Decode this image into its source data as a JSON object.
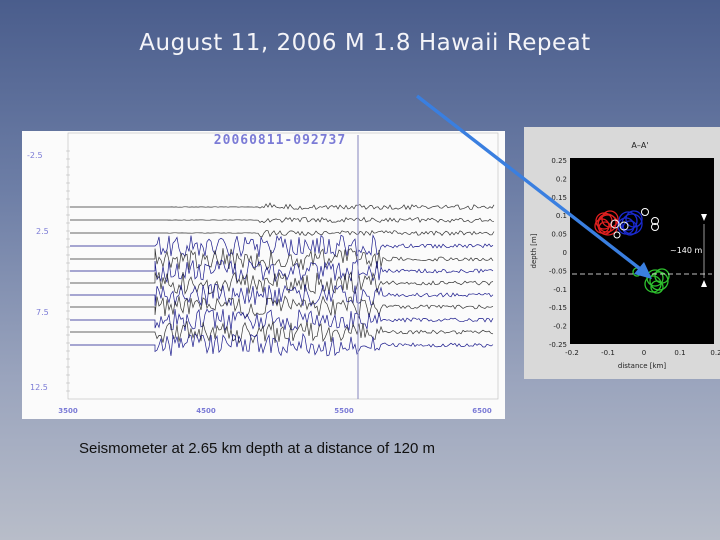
{
  "slide": {
    "title": "August 11, 2006 M 1.8 Hawaii Repeat",
    "caption": "Seismometer at 2.65 km depth at a distance of 120 m",
    "background_top": "#4a5d8c",
    "background_bottom": "#b8bdc9"
  },
  "seismogram": {
    "header": "20060811-092737",
    "header_color": "#7b7bd6",
    "y_tick_labels": [
      "-2.5",
      "2.5",
      "7.5",
      "12.5"
    ],
    "x_tick_labels": [
      "3500",
      "4500",
      "5500",
      "6500"
    ],
    "trace_color_primary": "#1a1a8c",
    "trace_color_secondary": "#333333",
    "pick_line_color": "#9a9ac8"
  },
  "cross_section": {
    "title": "A–A'",
    "y_axis_label": "depth [m]",
    "x_axis_label": "distance [km]",
    "y_tick_labels": [
      "0.25",
      "0.2",
      "0.15",
      "0.1",
      "0.05",
      "0",
      "-0.05",
      "-0.1",
      "-0.15",
      "-0.2",
      "-0.25"
    ],
    "x_tick_labels": [
      "-0.2",
      "-0.1",
      "0",
      "0.1",
      "0.2"
    ],
    "annotation": "~140 m",
    "cluster_colors": {
      "red": "#e02020",
      "blue": "#1a2ad0",
      "green": "#2ec22e"
    }
  },
  "arrow": {
    "color": "#3a7fe0"
  }
}
